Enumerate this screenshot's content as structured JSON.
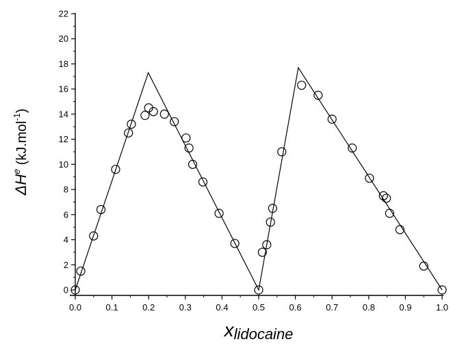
{
  "chart_data": {
    "type": "scatter",
    "title": "",
    "xlabel": {
      "base": "x",
      "sub": "lidocaine"
    },
    "ylabel": {
      "main": "ΔH",
      "sup": "e",
      "unit_pre": " (kJ.mol",
      "unit_sup": "-1",
      "unit_post": ")"
    },
    "xlim": [
      0,
      1
    ],
    "ylim": [
      0,
      22
    ],
    "xticks": [
      "0.0",
      "0.1",
      "0.2",
      "0.3",
      "0.4",
      "0.5",
      "0.6",
      "0.7",
      "0.8",
      "0.9",
      "1.0"
    ],
    "yticks": [
      "0",
      "2",
      "4",
      "6",
      "8",
      "10",
      "12",
      "14",
      "16",
      "18",
      "20",
      "22"
    ],
    "grid": false,
    "legend": "none",
    "colors": {
      "axis": "#000000",
      "marker": "#000000",
      "line": "#000000",
      "background": "#ffffff"
    },
    "series": [
      {
        "kind": "points",
        "marker": "open-circle",
        "x": [
          0.0,
          0.015,
          0.05,
          0.07,
          0.11,
          0.145,
          0.153,
          0.19,
          0.2,
          0.213,
          0.243,
          0.27,
          0.302,
          0.31,
          0.32,
          0.348,
          0.392,
          0.435,
          0.5,
          0.51,
          0.522,
          0.532,
          0.538,
          0.563,
          0.617,
          0.662,
          0.7,
          0.755,
          0.802,
          0.84,
          0.848,
          0.857,
          0.885,
          0.95,
          1.0
        ],
        "y": [
          0.0,
          1.5,
          4.3,
          6.4,
          9.6,
          12.5,
          13.2,
          13.9,
          14.5,
          14.2,
          14.0,
          13.4,
          12.1,
          11.3,
          10.0,
          8.6,
          6.1,
          3.7,
          0.0,
          3.0,
          3.6,
          5.4,
          6.5,
          11.0,
          16.3,
          15.5,
          13.6,
          11.3,
          8.9,
          7.5,
          7.3,
          6.1,
          4.8,
          1.9,
          0.0
        ]
      },
      {
        "kind": "line",
        "x": [
          0.0,
          0.199,
          0.5,
          0.608,
          1.0
        ],
        "y": [
          0.0,
          17.3,
          0.0,
          17.7,
          0.0
        ]
      }
    ]
  }
}
